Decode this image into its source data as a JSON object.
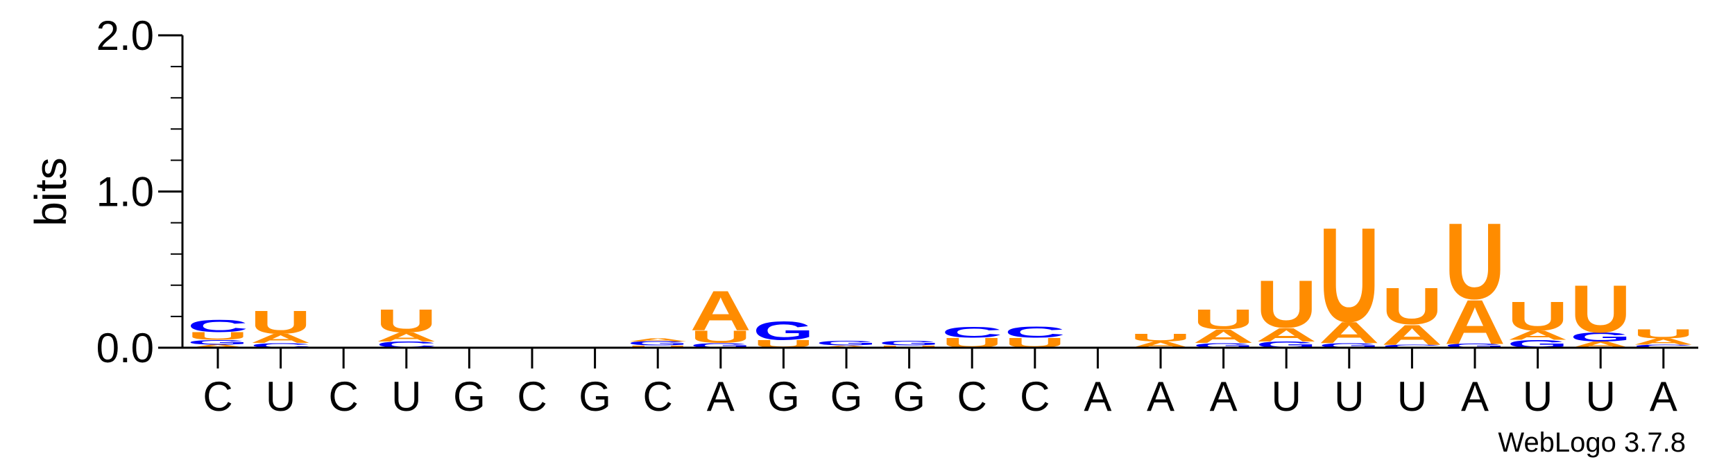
{
  "chart_data": {
    "type": "sequence-logo",
    "ylabel": "bits",
    "ylim": [
      0,
      2.0
    ],
    "yticks": [
      {
        "value": 0.0,
        "label": "0.0"
      },
      {
        "value": 1.0,
        "label": "1.0"
      },
      {
        "value": 2.0,
        "label": "2.0"
      }
    ],
    "xlabels": [
      "C",
      "U",
      "C",
      "U",
      "G",
      "C",
      "G",
      "C",
      "A",
      "G",
      "G",
      "G",
      "C",
      "C",
      "A",
      "A",
      "A",
      "U",
      "U",
      "U",
      "A",
      "U",
      "U",
      "A"
    ],
    "colors": {
      "A": "#ff8c00",
      "U": "#ff8c00",
      "C": "#0000ff",
      "G": "#0000ff"
    },
    "columns": [
      [
        {
          "l": "A",
          "h": 0.02
        },
        {
          "l": "G",
          "h": 0.03
        },
        {
          "l": "U",
          "h": 0.05
        },
        {
          "l": "C",
          "h": 0.08
        }
      ],
      [
        {
          "l": "C",
          "h": 0.03
        },
        {
          "l": "A",
          "h": 0.06
        },
        {
          "l": "U",
          "h": 0.15
        }
      ],
      [],
      [
        {
          "l": "C",
          "h": 0.04
        },
        {
          "l": "A",
          "h": 0.06
        },
        {
          "l": "U",
          "h": 0.15
        }
      ],
      [],
      [],
      [],
      [
        {
          "l": "U",
          "h": 0.015
        },
        {
          "l": "G",
          "h": 0.025
        },
        {
          "l": "A",
          "h": 0.02
        }
      ],
      [
        {
          "l": "G",
          "h": 0.03
        },
        {
          "l": "U",
          "h": 0.08
        },
        {
          "l": "A",
          "h": 0.26
        }
      ],
      [
        {
          "l": "U",
          "h": 0.05
        },
        {
          "l": "G",
          "h": 0.12
        }
      ],
      [
        {
          "l": "A",
          "h": 0.015
        },
        {
          "l": "G",
          "h": 0.03
        }
      ],
      [
        {
          "l": "U",
          "h": 0.015
        },
        {
          "l": "G",
          "h": 0.03
        }
      ],
      [
        {
          "l": "U",
          "h": 0.065
        },
        {
          "l": "C",
          "h": 0.07
        }
      ],
      [
        {
          "l": "U",
          "h": 0.065
        },
        {
          "l": "C",
          "h": 0.075
        }
      ],
      [],
      [
        {
          "l": "A",
          "h": 0.04
        },
        {
          "l": "U",
          "h": 0.05
        }
      ],
      [
        {
          "l": "G",
          "h": 0.03
        },
        {
          "l": "A",
          "h": 0.09
        },
        {
          "l": "U",
          "h": 0.13
        }
      ],
      [
        {
          "l": "G",
          "h": 0.04
        },
        {
          "l": "A",
          "h": 0.09
        },
        {
          "l": "U",
          "h": 0.31
        }
      ],
      [
        {
          "l": "G",
          "h": 0.03
        },
        {
          "l": "A",
          "h": 0.14
        },
        {
          "l": "U",
          "h": 0.62
        }
      ],
      [
        {
          "l": "C",
          "h": 0.02
        },
        {
          "l": "A",
          "h": 0.13
        },
        {
          "l": "U",
          "h": 0.24
        }
      ],
      [
        {
          "l": "G",
          "h": 0.025
        },
        {
          "l": "A",
          "h": 0.29
        },
        {
          "l": "U",
          "h": 0.5
        }
      ],
      [
        {
          "l": "G",
          "h": 0.05
        },
        {
          "l": "A",
          "h": 0.06
        },
        {
          "l": "U",
          "h": 0.19
        }
      ],
      [
        {
          "l": "A",
          "h": 0.04
        },
        {
          "l": "G",
          "h": 0.06
        },
        {
          "l": "U",
          "h": 0.31
        }
      ],
      [
        {
          "l": "C",
          "h": 0.02
        },
        {
          "l": "A",
          "h": 0.04
        },
        {
          "l": "U",
          "h": 0.06
        }
      ]
    ]
  },
  "footer": {
    "credit": "WebLogo 3.7.8"
  }
}
